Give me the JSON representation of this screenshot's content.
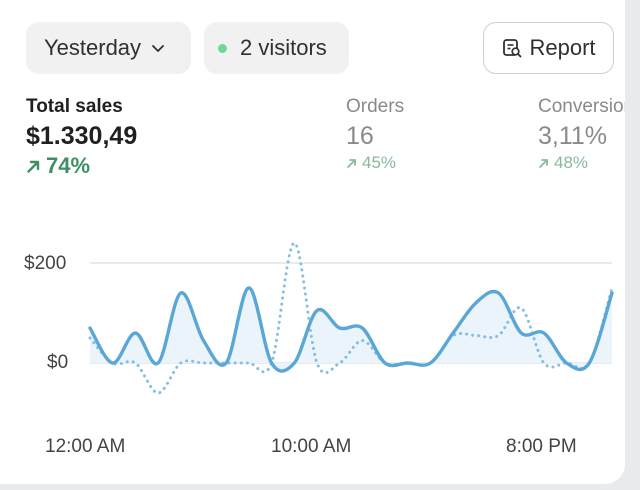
{
  "filters": {
    "date_label": "Yesterday",
    "visitors_label": "2 visitors",
    "report_label": "Report"
  },
  "metrics": [
    {
      "label": "Total sales",
      "value": "$1.330,49",
      "change": "74%",
      "trend": "up"
    },
    {
      "label": "Orders",
      "value": "16",
      "change": "45%",
      "trend": "up"
    },
    {
      "label": "Conversion",
      "value": "3,11%",
      "change": "48%",
      "trend": "up"
    }
  ],
  "icons": {
    "date_dropdown": "chevron-down-icon",
    "status_dot": "green-dot-icon",
    "report": "report-search-icon",
    "trend": "arrow-up-right-icon"
  },
  "colors": {
    "accent_blue": "#5aa7d6",
    "positive_green": "#3f8f63",
    "positive_green_muted": "#8ab89d",
    "live_dot": "#6fd893"
  },
  "chart_data": {
    "type": "line",
    "y_ticks": [
      "$200",
      "$0"
    ],
    "x_ticks": [
      "12:00 AM",
      "10:00 AM",
      "8:00 PM"
    ],
    "ylim": [
      -60,
      250
    ],
    "grid": true,
    "x": [
      0,
      1,
      2,
      3,
      4,
      5,
      6,
      7,
      8,
      9,
      10,
      11,
      12,
      13,
      14,
      15,
      16,
      17,
      18,
      19,
      20,
      21,
      22,
      23
    ],
    "series": [
      {
        "style": "solid",
        "values": [
          70,
          0,
          60,
          0,
          140,
          45,
          0,
          150,
          0,
          0,
          105,
          70,
          70,
          0,
          0,
          0,
          60,
          120,
          140,
          60,
          60,
          0,
          0,
          140
        ]
      },
      {
        "style": "dotted",
        "values": [
          50,
          0,
          0,
          -60,
          0,
          0,
          0,
          0,
          0,
          240,
          0,
          0,
          45,
          0,
          0,
          0,
          55,
          55,
          55,
          110,
          0,
          0,
          0,
          150
        ]
      }
    ]
  }
}
